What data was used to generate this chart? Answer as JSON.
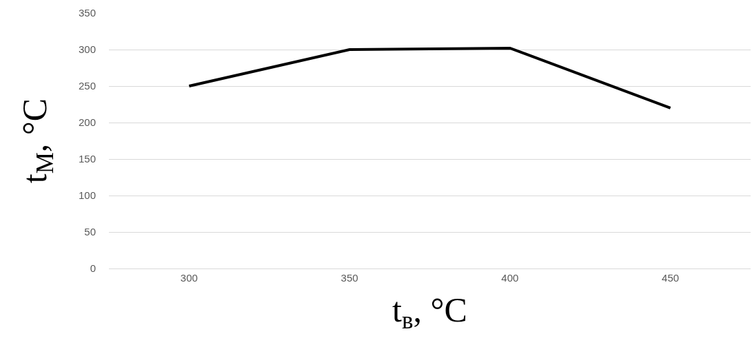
{
  "chart_data": {
    "type": "line",
    "xlabel": "t$_{в}$, °C",
    "ylabel": "t$_{М}$, °C",
    "categories": [
      "300",
      "350",
      "400",
      "450"
    ],
    "series": [
      {
        "color": "#000000",
        "values": [
          250,
          300,
          302,
          220
        ]
      }
    ],
    "ylim": [
      0,
      350
    ],
    "yticks": [
      0,
      50,
      100,
      150,
      200,
      250,
      300,
      350
    ],
    "grid": "y",
    "marker": "none",
    "line_style": "solid"
  }
}
